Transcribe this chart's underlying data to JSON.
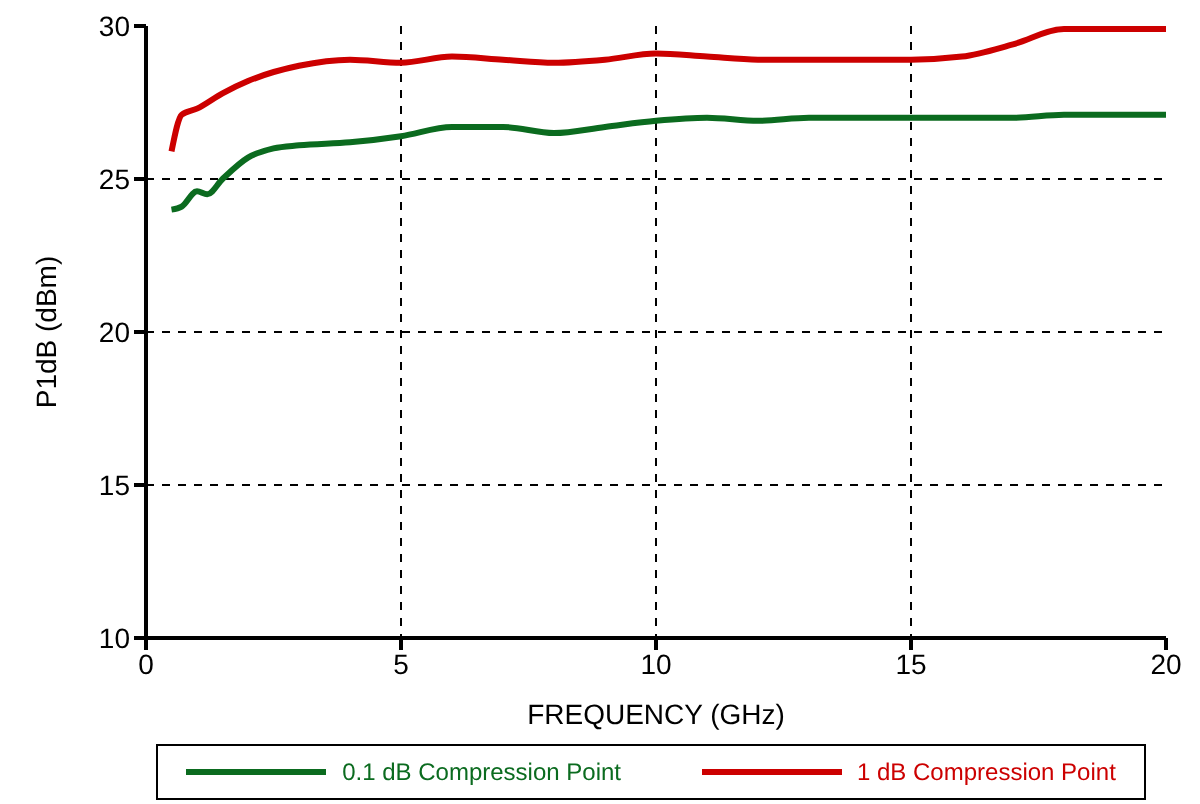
{
  "chart_data": {
    "type": "line",
    "xlabel": "FREQUENCY (GHz)",
    "ylabel": "P1dB (dBm)",
    "xlim": [
      0,
      20
    ],
    "xticks": [
      0,
      5,
      10,
      15,
      20
    ],
    "ylim": [
      10,
      30
    ],
    "yticks": [
      10,
      15,
      20,
      25,
      30
    ],
    "grid": true,
    "legend": "bottom",
    "line_style": "solid",
    "marker": "none",
    "series": [
      {
        "name": "0.1 dB Compression Point",
        "color": "#0b6b1f",
        "x": [
          0.5,
          0.7,
          1,
          1.2,
          1.5,
          2,
          2.5,
          3,
          4,
          5,
          6,
          7,
          8,
          9,
          10,
          11,
          12,
          13,
          15,
          16,
          17,
          18,
          20
        ],
        "values": [
          24.0,
          24.1,
          24.6,
          24.5,
          25.0,
          25.7,
          26.0,
          26.1,
          26.2,
          26.4,
          26.7,
          26.7,
          26.5,
          26.7,
          26.9,
          27.0,
          26.9,
          27.0,
          27.0,
          27.0,
          27.0,
          27.1,
          27.1
        ]
      },
      {
        "name": "1 dB Compression Point",
        "color": "#cc0000",
        "x": [
          0.5,
          0.7,
          1,
          1.5,
          2,
          3,
          4,
          5,
          6,
          7,
          8,
          9,
          10,
          11,
          12,
          13,
          14,
          15,
          16,
          17,
          18,
          19,
          20
        ],
        "values": [
          25.9,
          27.1,
          27.3,
          27.8,
          28.2,
          28.7,
          28.9,
          28.8,
          29.0,
          28.9,
          28.8,
          28.9,
          29.1,
          29.0,
          28.9,
          28.9,
          28.9,
          28.9,
          29.0,
          29.4,
          29.9,
          29.9,
          29.9
        ]
      }
    ]
  }
}
